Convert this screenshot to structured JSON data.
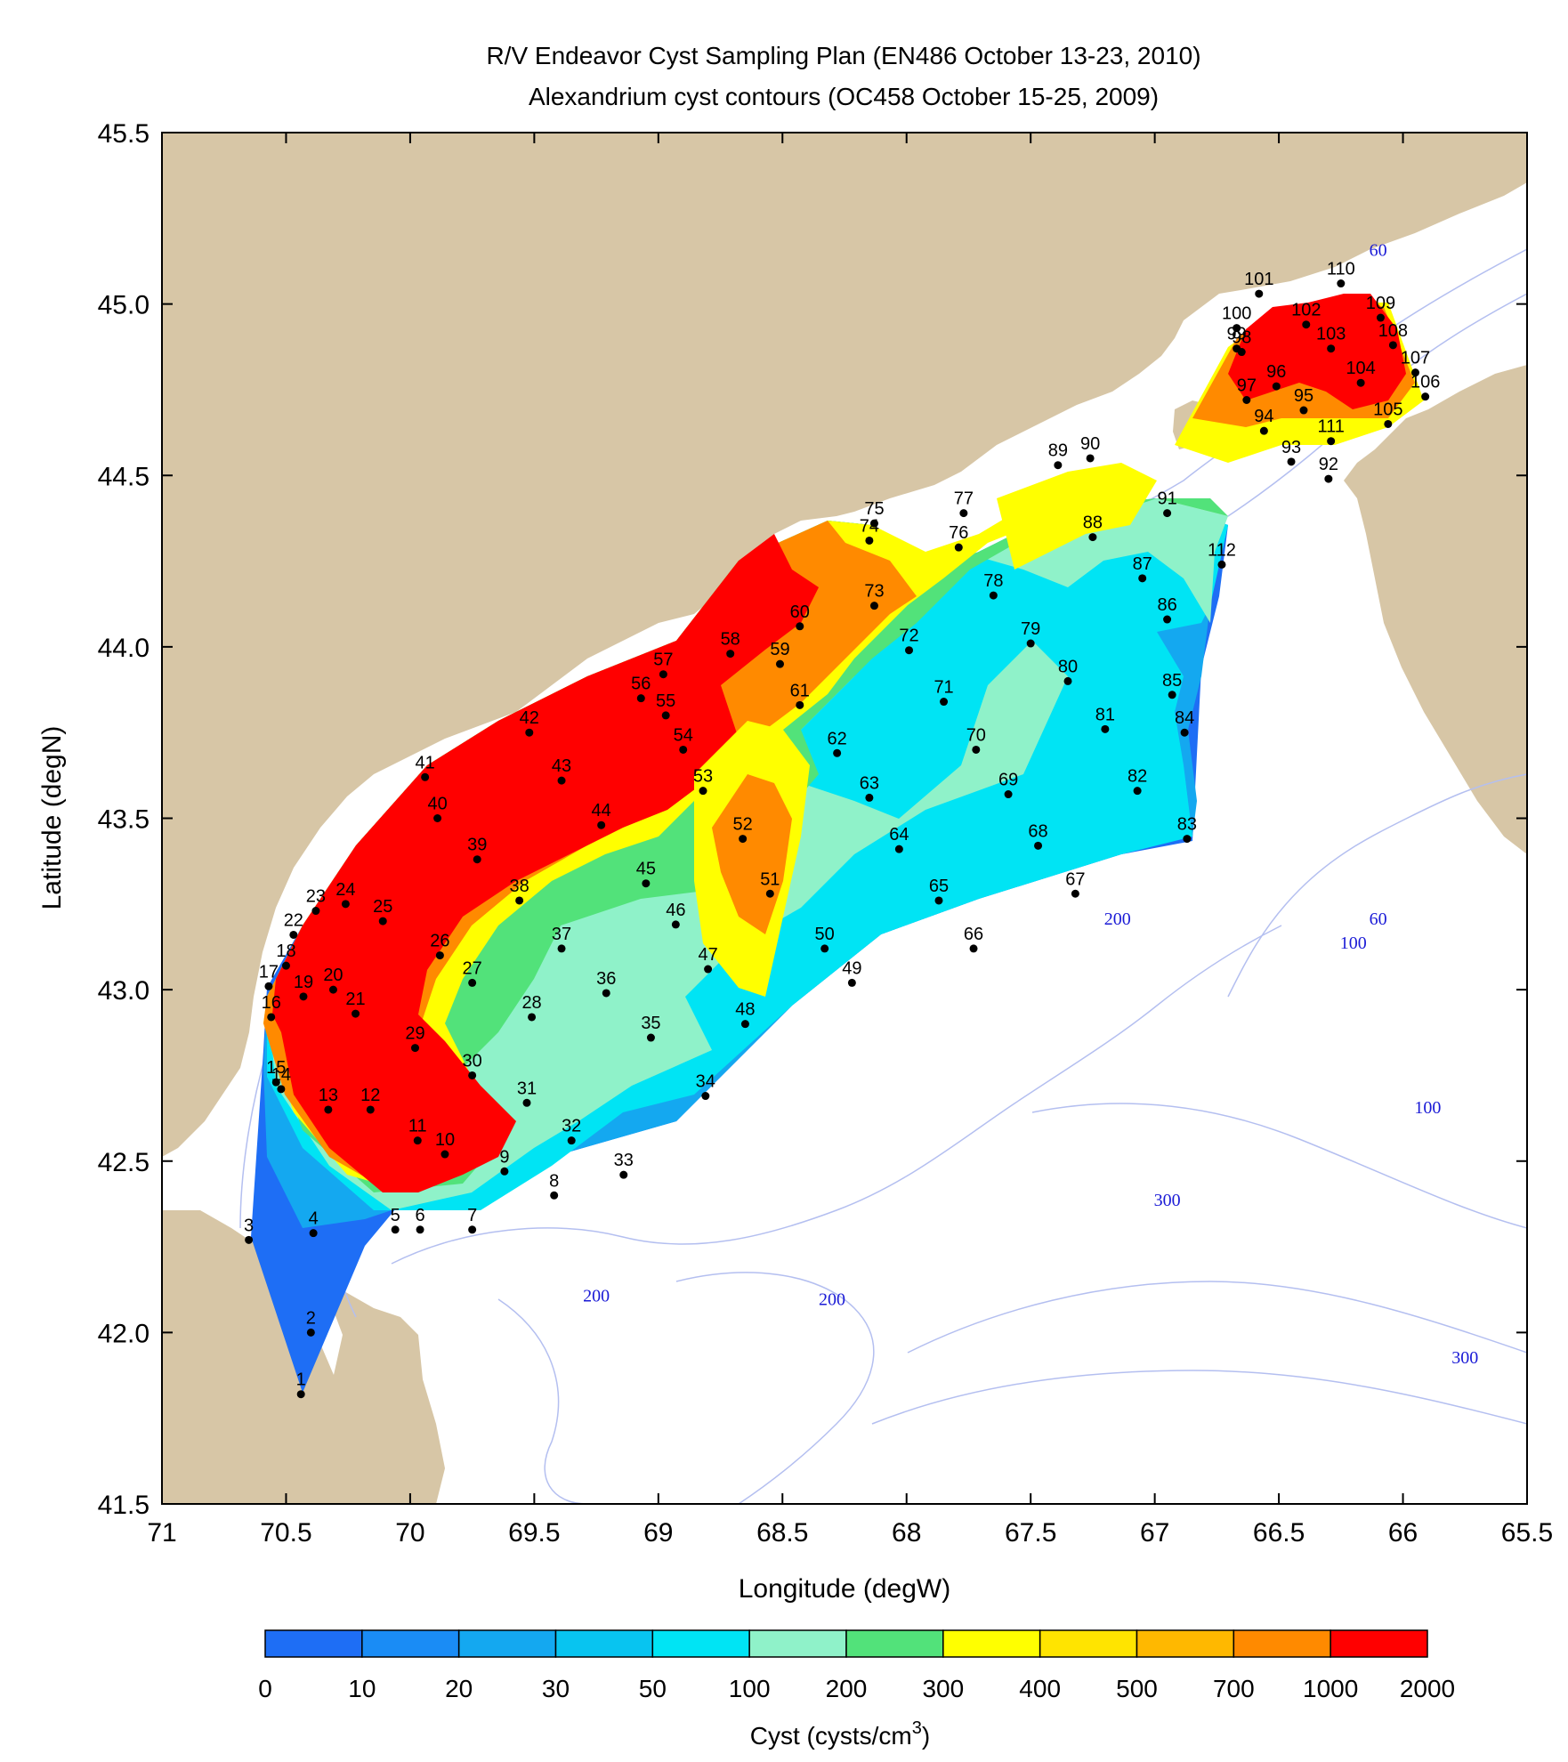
{
  "title": {
    "line1": "R/V Endeavor Cyst Sampling Plan (EN486 October 13-23, 2010)",
    "line2": "Alexandrium cyst contours (OC458 October 15-25, 2009)"
  },
  "map_data": {
    "projection": "lon-lat",
    "lon_range": [
      -71,
      -65.5
    ],
    "lat_range": [
      41.5,
      45.5
    ],
    "xlabel": "Longitude (degW)",
    "ylabel": "Latitude (degN)",
    "x_ticks": [
      71,
      70.5,
      70,
      69.5,
      69,
      68.5,
      68,
      67.5,
      67,
      66.5,
      66,
      65.5
    ],
    "y_ticks": [
      45.5,
      45,
      44.5,
      44,
      43.5,
      43,
      42.5,
      42,
      41.5
    ],
    "colors": {
      "land": "#d7c6a6",
      "bathymetry_lines": "#b4bff0",
      "bathymetry_text": "#1a1ad6",
      "station": "#000000"
    },
    "contour_levels": [
      "0",
      "10",
      "20",
      "30",
      "50",
      "100",
      "200",
      "300",
      "400",
      "500",
      "700",
      "1000",
      "2000"
    ],
    "contour_colors": [
      "#1e6ef5",
      "#1a8cf5",
      "#14a8f0",
      "#08c4f0",
      "#00e4f4",
      "#8ff2c9",
      "#52e27a",
      "#ffff00",
      "#ffe400",
      "#ffb800",
      "#ff8a00",
      "#ff0000"
    ],
    "colorbar_label": "Cyst (cysts/cm",
    "colorbar_label_sup": "3",
    "colorbar_label_end": ")",
    "depth_contour_labels": [
      {
        "text": "60",
        "lon": -66.1,
        "lat": 45.14
      },
      {
        "text": "60",
        "lon": -66.1,
        "lat": 43.19
      },
      {
        "text": "100",
        "lon": -66.2,
        "lat": 43.12
      },
      {
        "text": "200",
        "lon": -67.15,
        "lat": 43.19
      },
      {
        "text": "100",
        "lon": -65.9,
        "lat": 42.64
      },
      {
        "text": "300",
        "lon": -66.95,
        "lat": 42.37
      },
      {
        "text": "200",
        "lon": -69.25,
        "lat": 42.09
      },
      {
        "text": "200",
        "lon": -68.3,
        "lat": 42.08
      },
      {
        "text": "300",
        "lon": -65.75,
        "lat": 41.91
      }
    ],
    "stations": [
      {
        "id": "1",
        "lon": -70.44,
        "lat": 41.82
      },
      {
        "id": "2",
        "lon": -70.4,
        "lat": 42.0
      },
      {
        "id": "3",
        "lon": -70.65,
        "lat": 42.27
      },
      {
        "id": "4",
        "lon": -70.39,
        "lat": 42.29
      },
      {
        "id": "5",
        "lon": -70.06,
        "lat": 42.3
      },
      {
        "id": "6",
        "lon": -69.96,
        "lat": 42.3
      },
      {
        "id": "7",
        "lon": -69.75,
        "lat": 42.3
      },
      {
        "id": "8",
        "lon": -69.42,
        "lat": 42.4
      },
      {
        "id": "9",
        "lon": -69.62,
        "lat": 42.47
      },
      {
        "id": "10",
        "lon": -69.86,
        "lat": 42.52
      },
      {
        "id": "11",
        "lon": -69.97,
        "lat": 42.56
      },
      {
        "id": "12",
        "lon": -70.16,
        "lat": 42.65
      },
      {
        "id": "13",
        "lon": -70.33,
        "lat": 42.65
      },
      {
        "id": "14",
        "lon": -70.52,
        "lat": 42.71
      },
      {
        "id": "15",
        "lon": -70.54,
        "lat": 42.73
      },
      {
        "id": "16",
        "lon": -70.56,
        "lat": 42.92
      },
      {
        "id": "17",
        "lon": -70.57,
        "lat": 43.01
      },
      {
        "id": "18",
        "lon": -70.5,
        "lat": 43.07
      },
      {
        "id": "19",
        "lon": -70.43,
        "lat": 42.98
      },
      {
        "id": "20",
        "lon": -70.31,
        "lat": 43.0
      },
      {
        "id": "21",
        "lon": -70.22,
        "lat": 42.93
      },
      {
        "id": "22",
        "lon": -70.47,
        "lat": 43.16
      },
      {
        "id": "23",
        "lon": -70.38,
        "lat": 43.23
      },
      {
        "id": "24",
        "lon": -70.26,
        "lat": 43.25
      },
      {
        "id": "25",
        "lon": -70.11,
        "lat": 43.2
      },
      {
        "id": "26",
        "lon": -69.88,
        "lat": 43.1
      },
      {
        "id": "27",
        "lon": -69.75,
        "lat": 43.02
      },
      {
        "id": "28",
        "lon": -69.51,
        "lat": 42.92
      },
      {
        "id": "29",
        "lon": -69.98,
        "lat": 42.83
      },
      {
        "id": "30",
        "lon": -69.75,
        "lat": 42.75
      },
      {
        "id": "31",
        "lon": -69.53,
        "lat": 42.67
      },
      {
        "id": "32",
        "lon": -69.35,
        "lat": 42.56
      },
      {
        "id": "33",
        "lon": -69.14,
        "lat": 42.46
      },
      {
        "id": "34",
        "lon": -68.81,
        "lat": 42.69
      },
      {
        "id": "35",
        "lon": -69.03,
        "lat": 42.86
      },
      {
        "id": "36",
        "lon": -69.21,
        "lat": 42.99
      },
      {
        "id": "37",
        "lon": -69.39,
        "lat": 43.12
      },
      {
        "id": "38",
        "lon": -69.56,
        "lat": 43.26
      },
      {
        "id": "39",
        "lon": -69.73,
        "lat": 43.38
      },
      {
        "id": "40",
        "lon": -69.89,
        "lat": 43.5
      },
      {
        "id": "41",
        "lon": -69.94,
        "lat": 43.62
      },
      {
        "id": "42",
        "lon": -69.52,
        "lat": 43.75
      },
      {
        "id": "43",
        "lon": -69.39,
        "lat": 43.61
      },
      {
        "id": "44",
        "lon": -69.23,
        "lat": 43.48
      },
      {
        "id": "45",
        "lon": -69.05,
        "lat": 43.31
      },
      {
        "id": "46",
        "lon": -68.93,
        "lat": 43.19
      },
      {
        "id": "47",
        "lon": -68.8,
        "lat": 43.06
      },
      {
        "id": "48",
        "lon": -68.65,
        "lat": 42.9
      },
      {
        "id": "49",
        "lon": -68.22,
        "lat": 43.02
      },
      {
        "id": "50",
        "lon": -68.33,
        "lat": 43.12
      },
      {
        "id": "51",
        "lon": -68.55,
        "lat": 43.28
      },
      {
        "id": "52",
        "lon": -68.66,
        "lat": 43.44
      },
      {
        "id": "53",
        "lon": -68.82,
        "lat": 43.58
      },
      {
        "id": "54",
        "lon": -68.9,
        "lat": 43.7
      },
      {
        "id": "55",
        "lon": -68.97,
        "lat": 43.8
      },
      {
        "id": "56",
        "lon": -69.07,
        "lat": 43.85
      },
      {
        "id": "57",
        "lon": -68.98,
        "lat": 43.92
      },
      {
        "id": "58",
        "lon": -68.71,
        "lat": 43.98
      },
      {
        "id": "59",
        "lon": -68.51,
        "lat": 43.95
      },
      {
        "id": "60",
        "lon": -68.43,
        "lat": 44.06
      },
      {
        "id": "61",
        "lon": -68.43,
        "lat": 43.83
      },
      {
        "id": "62",
        "lon": -68.28,
        "lat": 43.69
      },
      {
        "id": "63",
        "lon": -68.15,
        "lat": 43.56
      },
      {
        "id": "64",
        "lon": -68.03,
        "lat": 43.41
      },
      {
        "id": "65",
        "lon": -67.87,
        "lat": 43.26
      },
      {
        "id": "66",
        "lon": -67.73,
        "lat": 43.12
      },
      {
        "id": "67",
        "lon": -67.32,
        "lat": 43.28
      },
      {
        "id": "68",
        "lon": -67.47,
        "lat": 43.42
      },
      {
        "id": "69",
        "lon": -67.59,
        "lat": 43.57
      },
      {
        "id": "70",
        "lon": -67.72,
        "lat": 43.7
      },
      {
        "id": "71",
        "lon": -67.85,
        "lat": 43.84
      },
      {
        "id": "72",
        "lon": -67.99,
        "lat": 43.99
      },
      {
        "id": "73",
        "lon": -68.13,
        "lat": 44.12
      },
      {
        "id": "74",
        "lon": -68.15,
        "lat": 44.31
      },
      {
        "id": "75",
        "lon": -68.13,
        "lat": 44.36
      },
      {
        "id": "76",
        "lon": -67.79,
        "lat": 44.29
      },
      {
        "id": "77",
        "lon": -67.77,
        "lat": 44.39
      },
      {
        "id": "78",
        "lon": -67.65,
        "lat": 44.15
      },
      {
        "id": "79",
        "lon": -67.5,
        "lat": 44.01
      },
      {
        "id": "80",
        "lon": -67.35,
        "lat": 43.9
      },
      {
        "id": "81",
        "lon": -67.2,
        "lat": 43.76
      },
      {
        "id": "82",
        "lon": -67.07,
        "lat": 43.58
      },
      {
        "id": "83",
        "lon": -66.87,
        "lat": 43.44
      },
      {
        "id": "84",
        "lon": -66.88,
        "lat": 43.75
      },
      {
        "id": "85",
        "lon": -66.93,
        "lat": 43.86
      },
      {
        "id": "86",
        "lon": -66.95,
        "lat": 44.08
      },
      {
        "id": "87",
        "lon": -67.05,
        "lat": 44.2
      },
      {
        "id": "88",
        "lon": -67.25,
        "lat": 44.32
      },
      {
        "id": "89",
        "lon": -67.39,
        "lat": 44.53
      },
      {
        "id": "90",
        "lon": -67.26,
        "lat": 44.55
      },
      {
        "id": "91",
        "lon": -66.95,
        "lat": 44.39
      },
      {
        "id": "92",
        "lon": -66.3,
        "lat": 44.49
      },
      {
        "id": "93",
        "lon": -66.45,
        "lat": 44.54
      },
      {
        "id": "94",
        "lon": -66.56,
        "lat": 44.63
      },
      {
        "id": "95",
        "lon": -66.4,
        "lat": 44.69
      },
      {
        "id": "96",
        "lon": -66.51,
        "lat": 44.76
      },
      {
        "id": "97",
        "lon": -66.63,
        "lat": 44.72
      },
      {
        "id": "98",
        "lon": -66.65,
        "lat": 44.86
      },
      {
        "id": "99",
        "lon": -66.67,
        "lat": 44.87
      },
      {
        "id": "100",
        "lon": -66.67,
        "lat": 44.93
      },
      {
        "id": "101",
        "lon": -66.58,
        "lat": 45.03
      },
      {
        "id": "102",
        "lon": -66.39,
        "lat": 44.94
      },
      {
        "id": "103",
        "lon": -66.29,
        "lat": 44.87
      },
      {
        "id": "104",
        "lon": -66.17,
        "lat": 44.77
      },
      {
        "id": "105",
        "lon": -66.06,
        "lat": 44.65
      },
      {
        "id": "106",
        "lon": -65.91,
        "lat": 44.73
      },
      {
        "id": "107",
        "lon": -65.95,
        "lat": 44.8
      },
      {
        "id": "108",
        "lon": -66.04,
        "lat": 44.88
      },
      {
        "id": "109",
        "lon": -66.09,
        "lat": 44.96
      },
      {
        "id": "110",
        "lon": -66.25,
        "lat": 45.06
      },
      {
        "id": "111",
        "lon": -66.29,
        "lat": 44.6
      },
      {
        "id": "112",
        "lon": -66.73,
        "lat": 44.24
      }
    ]
  }
}
